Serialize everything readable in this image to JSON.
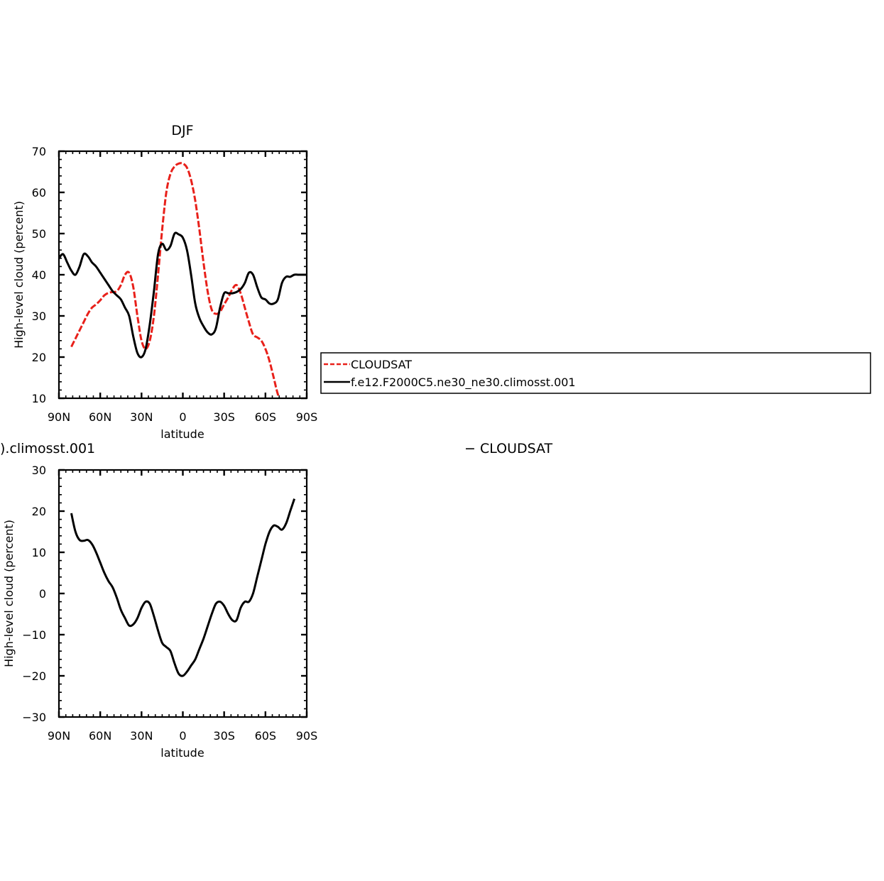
{
  "chart_data": [
    {
      "type": "line",
      "title": "DJF",
      "xlabel": "latitude",
      "ylabel": "High-level cloud (percent)",
      "xlim": [
        90,
        -90
      ],
      "ylim": [
        10,
        70
      ],
      "xticks": [
        90,
        60,
        30,
        0,
        -30,
        -60,
        -90
      ],
      "xtick_labels": [
        "90N",
        "60N",
        "30N",
        "0",
        "30S",
        "60S",
        "90S"
      ],
      "yticks": [
        10,
        20,
        30,
        40,
        50,
        60,
        70
      ],
      "ytick_labels": [
        "10",
        "20",
        "30",
        "40",
        "50",
        "60",
        "70"
      ],
      "grid": false,
      "legend": "right",
      "series": [
        {
          "name": "CLOUDSAT",
          "color": "#e8201a",
          "dash": "dashed",
          "x": [
            81,
            78,
            75,
            72,
            69,
            66,
            63,
            60,
            57,
            54,
            51,
            48,
            45,
            42,
            39,
            36,
            33,
            30,
            27,
            24,
            21,
            18,
            15,
            12,
            9,
            6,
            3,
            0,
            -3,
            -6,
            -9,
            -12,
            -15,
            -18,
            -21,
            -24,
            -27,
            -30,
            -33,
            -36,
            -39,
            -42,
            -45,
            -48,
            -51,
            -54,
            -57,
            -60,
            -63,
            -66,
            -69,
            -72,
            -75,
            -78,
            -81
          ],
          "y": [
            22.5,
            24.5,
            26.5,
            28.5,
            30.5,
            32,
            32.8,
            33.8,
            35,
            35.6,
            35.8,
            36,
            37.5,
            40,
            40.5,
            37,
            30,
            24,
            22,
            24,
            30,
            40,
            51,
            60,
            64.5,
            66.3,
            67,
            67,
            66,
            63,
            58,
            51,
            43,
            36,
            31.5,
            30.5,
            31,
            32.8,
            34.5,
            36.5,
            37.5,
            35.5,
            32,
            28.5,
            25.5,
            24.8,
            24,
            22,
            19,
            15,
            11,
            8.5,
            7,
            6.5,
            6
          ]
        },
        {
          "name": "f.e12.F2000C5.ne30_ne30.climosst.001",
          "color": "#000000",
          "dash": "solid",
          "x": [
            90,
            87,
            84,
            81,
            78,
            75,
            72,
            69,
            66,
            63,
            60,
            57,
            54,
            51,
            48,
            45,
            42,
            39,
            36,
            33,
            30,
            27,
            24,
            21,
            18,
            15,
            12,
            9,
            6,
            3,
            0,
            -3,
            -6,
            -9,
            -12,
            -15,
            -18,
            -21,
            -24,
            -27,
            -30,
            -33,
            -36,
            -39,
            -42,
            -45,
            -48,
            -51,
            -54,
            -57,
            -60,
            -63,
            -66,
            -69,
            -72,
            -75,
            -78,
            -81,
            -84,
            -87,
            -90
          ],
          "y": [
            44,
            45,
            43,
            41,
            40,
            42,
            45,
            44.5,
            43,
            42,
            40.5,
            39,
            37.5,
            36,
            35,
            34,
            32,
            30,
            25,
            21,
            20,
            22,
            28,
            36,
            45,
            47.5,
            46,
            47,
            50,
            49.8,
            49,
            46,
            40,
            33,
            29.5,
            27.5,
            26,
            25.5,
            27,
            32,
            35.5,
            35.5,
            35.5,
            35.8,
            36.5,
            38,
            40.5,
            40,
            37,
            34.5,
            34,
            33,
            33,
            34,
            38,
            39.5,
            39.5,
            40,
            40,
            40,
            40
          ]
        }
      ]
    },
    {
      "type": "line",
      "title": ").climosst.001",
      "right_title": "− CLOUDSAT",
      "xlabel": "latitude",
      "ylabel": "High-level cloud (percent)",
      "xlim": [
        90,
        -90
      ],
      "ylim": [
        -30,
        30
      ],
      "xticks": [
        90,
        60,
        30,
        0,
        -30,
        -60,
        -90
      ],
      "xtick_labels": [
        "90N",
        "60N",
        "30N",
        "0",
        "30S",
        "60S",
        "90S"
      ],
      "yticks": [
        -30,
        -20,
        -10,
        0,
        10,
        20,
        30
      ],
      "ytick_labels": [
        "−30",
        "−20",
        "−10",
        "0",
        "10",
        "20",
        "30"
      ],
      "grid": false,
      "series": [
        {
          "color": "#000000",
          "dash": "solid",
          "x": [
            81,
            78,
            75,
            72,
            69,
            66,
            63,
            60,
            57,
            54,
            51,
            48,
            45,
            42,
            39,
            36,
            33,
            30,
            27,
            24,
            21,
            18,
            15,
            12,
            9,
            6,
            3,
            0,
            -3,
            -6,
            -9,
            -12,
            -15,
            -18,
            -21,
            -24,
            -27,
            -30,
            -33,
            -36,
            -39,
            -42,
            -45,
            -48,
            -51,
            -54,
            -57,
            -60,
            -63,
            -66,
            -69,
            -72,
            -75,
            -78,
            -81
          ],
          "y": [
            19.5,
            15,
            13,
            12.8,
            13,
            12,
            10,
            7.5,
            5,
            3,
            1.5,
            -1,
            -4,
            -6,
            -7.8,
            -7.5,
            -6,
            -3.5,
            -2,
            -2.5,
            -5.5,
            -9,
            -12,
            -13,
            -14,
            -17,
            -19.5,
            -20,
            -19,
            -17.5,
            -16,
            -13.5,
            -11,
            -8,
            -5,
            -2.5,
            -2,
            -3,
            -5,
            -6.5,
            -6.5,
            -3.5,
            -2,
            -2,
            0,
            4,
            8,
            12,
            15,
            16.5,
            16.2,
            15.5,
            17,
            20,
            23
          ]
        }
      ]
    }
  ],
  "legend": {
    "items": [
      {
        "label": "CLOUDSAT",
        "color": "#e8201a",
        "dash": "dashed"
      },
      {
        "label": "f.e12.F2000C5.ne30_ne30.climosst.001",
        "color": "#000000",
        "dash": "solid"
      }
    ]
  }
}
